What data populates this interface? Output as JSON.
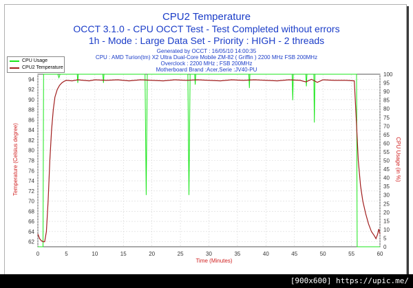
{
  "header": {
    "title": "CPU2 Temperature",
    "subtitle1": "OCCT 3.1.0 - CPU OCCT Test - Test Completed without errors",
    "subtitle2": "1h - Mode : Large Data Set - Priority : HIGH - 2 threads",
    "generated": "Generated by OCCT : 16/05/10 14:00:35",
    "cpu": "CPU : AMD Turion(tm) X2 Ultra Dual-Core Mobile ZM-82 ( Griffin ) 2200 MHz FSB 200MHz",
    "overclock": "Overclock : 2200 MHz ; FSB 200MHz",
    "motherboard": "Motherboard Brand :Acer,Serie :JV40-PU"
  },
  "legend": {
    "items": [
      {
        "label": "CPU Usage"
      },
      {
        "label": "CPU2 Temperature"
      }
    ]
  },
  "footer": {
    "text": "[900x600] https://upic.me/"
  },
  "colors": {
    "usage": "#19e619",
    "temp": "#a01c1c",
    "title": "#1a3cc8",
    "axis_left": "#d02020",
    "grid": "#d8d8d8"
  },
  "chart_data": {
    "type": "line",
    "xlabel": "Time (Minutes)",
    "ylabel_left": "Temperature (Celsius degree)",
    "ylabel_right": "CPU Usage (in %)",
    "xlim": [
      0,
      60
    ],
    "ylim_left": [
      61,
      95
    ],
    "ylim_right": [
      0,
      100
    ],
    "x_ticks": [
      0,
      5,
      10,
      15,
      20,
      25,
      30,
      35,
      40,
      45,
      50,
      55,
      60
    ],
    "y_left_ticks": [
      62,
      64,
      66,
      68,
      70,
      72,
      74,
      76,
      78,
      80,
      82,
      84,
      86,
      88,
      90,
      92,
      94
    ],
    "y_right_ticks": [
      0,
      5,
      10,
      15,
      20,
      25,
      30,
      35,
      40,
      45,
      50,
      55,
      60,
      65,
      70,
      75,
      80,
      85,
      90,
      95,
      100
    ],
    "grid": true,
    "legend_position": "top-left",
    "series": [
      {
        "name": "CPU2 Temperature",
        "axis": "left",
        "x": [
          0,
          0.3,
          0.6,
          0.9,
          1.2,
          1.5,
          1.8,
          2.1,
          2.4,
          2.7,
          3.0,
          3.4,
          3.8,
          4.2,
          4.6,
          5,
          6,
          7,
          8,
          9,
          10,
          12,
          14,
          16,
          18,
          20,
          22,
          24,
          26,
          28,
          30,
          32,
          34,
          36,
          38,
          40,
          42,
          44,
          46,
          47,
          48,
          49,
          50,
          52,
          54,
          55.5,
          55.9,
          56.2,
          56.6,
          57.0,
          57.5,
          58.0,
          58.5,
          59.0,
          59.3,
          59.6,
          59.8,
          60
        ],
        "y": [
          63.5,
          62.6,
          62.2,
          62.0,
          62.0,
          64.0,
          70.0,
          78.0,
          84.0,
          88.0,
          90.5,
          92.0,
          92.8,
          93.3,
          93.6,
          93.8,
          93.7,
          93.9,
          93.8,
          93.7,
          93.9,
          93.8,
          93.9,
          93.7,
          93.9,
          93.8,
          93.7,
          93.9,
          93.8,
          93.9,
          93.8,
          93.7,
          93.9,
          93.8,
          93.9,
          93.8,
          93.7,
          93.9,
          93.8,
          93.5,
          94.0,
          93.4,
          93.9,
          93.8,
          93.8,
          93.7,
          85.0,
          78.0,
          73.0,
          70.0,
          67.5,
          65.5,
          64.0,
          63.2,
          62.6,
          63.5,
          64.5,
          63.5
        ]
      },
      {
        "name": "CPU Usage",
        "axis": "right",
        "x": [
          0,
          0.9,
          1.0,
          1.2,
          1.4,
          2.0,
          2.6,
          3.5,
          3.7,
          3.9,
          5,
          6.9,
          7.0,
          7.1,
          9,
          11.4,
          11.5,
          11.6,
          14,
          18.8,
          19.0,
          19.2,
          22,
          26.3,
          26.5,
          26.7,
          27.5,
          27.6,
          27.7,
          32,
          37.0,
          37.1,
          37.2,
          40,
          44.6,
          44.7,
          44.8,
          47.0,
          47.1,
          47.2,
          48.4,
          48.5,
          48.6,
          52,
          55.9,
          56.0,
          56.1,
          58,
          60
        ],
        "y": [
          0,
          0,
          100,
          100,
          100,
          100,
          100,
          100,
          98,
          100,
          100,
          100,
          95,
          100,
          100,
          100,
          95,
          100,
          100,
          100,
          30,
          100,
          100,
          100,
          30,
          100,
          100,
          94,
          100,
          100,
          100,
          92,
          100,
          100,
          100,
          85,
          100,
          100,
          93,
          100,
          100,
          72,
          100,
          100,
          100,
          0,
          0,
          0,
          0
        ]
      }
    ]
  }
}
